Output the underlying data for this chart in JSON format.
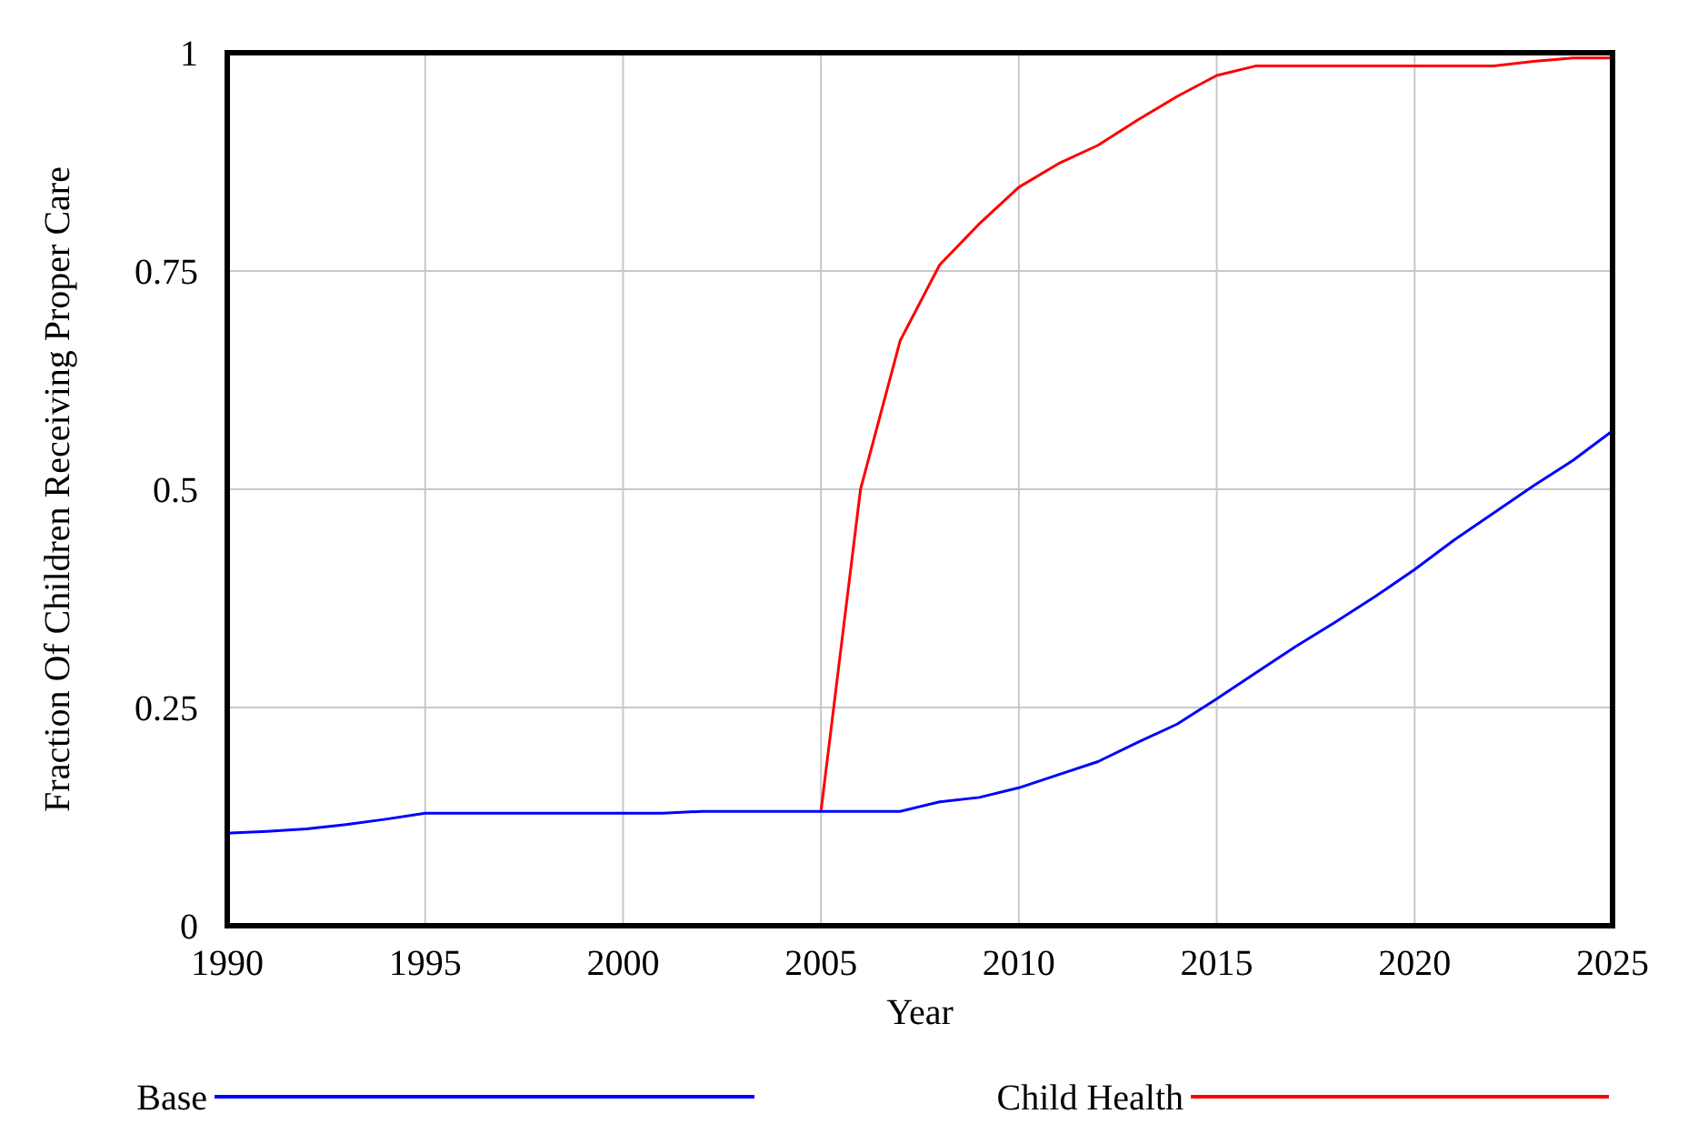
{
  "chart_data": {
    "type": "line",
    "xlabel": "Year",
    "ylabel": "Fraction Of Children Receiving Proper Care",
    "x": [
      1990,
      1991,
      1992,
      1993,
      1994,
      1995,
      1996,
      1997,
      1998,
      1999,
      2000,
      2001,
      2002,
      2003,
      2004,
      2005,
      2006,
      2007,
      2008,
      2009,
      2010,
      2011,
      2012,
      2013,
      2014,
      2015,
      2016,
      2017,
      2018,
      2019,
      2020,
      2021,
      2022,
      2023,
      2024,
      2025
    ],
    "series": [
      {
        "name": "Base",
        "color": "#0000ff",
        "values": [
          0.106,
          0.108,
          0.111,
          0.116,
          0.122,
          0.129,
          0.129,
          0.129,
          0.129,
          0.129,
          0.129,
          0.129,
          0.131,
          0.131,
          0.131,
          0.131,
          0.131,
          0.131,
          0.142,
          0.147,
          0.158,
          0.173,
          0.188,
          0.21,
          0.231,
          0.26,
          0.29,
          0.32,
          0.348,
          0.377,
          0.408,
          0.442,
          0.473,
          0.504,
          0.533,
          0.567
        ]
      },
      {
        "name": "Child Health",
        "color": "#ff0000",
        "values": [
          null,
          null,
          null,
          null,
          null,
          null,
          null,
          null,
          null,
          null,
          null,
          null,
          null,
          null,
          null,
          0.131,
          0.5,
          0.67,
          0.757,
          0.804,
          0.846,
          0.873,
          0.894,
          0.923,
          0.95,
          0.974,
          0.985,
          0.985,
          0.985,
          0.985,
          0.985,
          0.985,
          0.985,
          0.99,
          0.994,
          0.994
        ]
      }
    ],
    "xlim": [
      1990,
      2025
    ],
    "xticks": [
      1990,
      1995,
      2000,
      2005,
      2010,
      2015,
      2020,
      2025
    ],
    "ylim": [
      0,
      1
    ],
    "yticks": [
      0,
      0.25,
      0.5,
      0.75,
      1
    ],
    "grid": true,
    "legend": "bottom"
  }
}
